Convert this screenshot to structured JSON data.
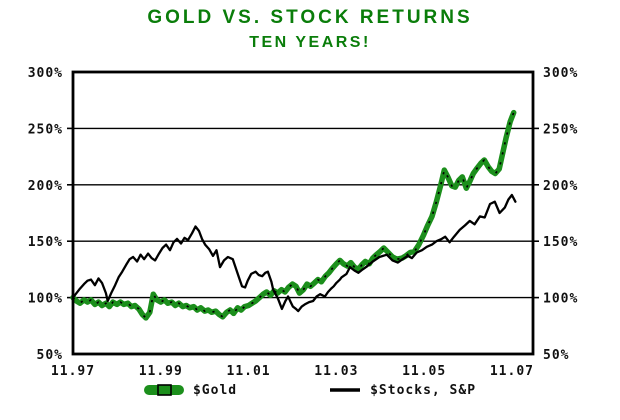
{
  "title": {
    "line1": "GOLD VS. STOCK RETURNS",
    "line2": "TEN YEARS!"
  },
  "legend": {
    "gold_label": "$Gold",
    "stocks_label": "$Stocks, S&P"
  },
  "colors": {
    "title_green": "#0a7d0a",
    "gold_line": "#1c8f1c",
    "stocks_line": "#000000",
    "axis": "#111111"
  },
  "chart_data": {
    "type": "line",
    "title": "GOLD VS. STOCK RETURNS",
    "subtitle": "TEN YEARS!",
    "xlabel": "",
    "ylabel": "",
    "grid": "horizontal",
    "legend_position": "bottom",
    "ylim": [
      50,
      300
    ],
    "xlim": [
      1997.92,
      2008.4
    ],
    "ytick_values": [
      300,
      250,
      200,
      150,
      100,
      50
    ],
    "ytick_labels": [
      "300%",
      "250%",
      "200%",
      "150%",
      "100%",
      "50%"
    ],
    "ytick_sides": "both",
    "xtick_values": [
      1997.92,
      1999.92,
      2001.92,
      2003.92,
      2005.92,
      2007.92
    ],
    "xtick_labels": [
      "11.97",
      "11.99",
      "11.01",
      "11.03",
      "11.05",
      "11.07"
    ],
    "series": [
      {
        "name": "$Gold",
        "color": "#1c8f1c",
        "style": "thick-green-with-black-dots",
        "points": [
          [
            1997.92,
            100
          ],
          [
            1998.0,
            97
          ],
          [
            1998.08,
            95
          ],
          [
            1998.17,
            98
          ],
          [
            1998.25,
            96
          ],
          [
            1998.33,
            98
          ],
          [
            1998.42,
            94
          ],
          [
            1998.5,
            96
          ],
          [
            1998.58,
            93
          ],
          [
            1998.67,
            95
          ],
          [
            1998.75,
            92
          ],
          [
            1998.83,
            96
          ],
          [
            1998.92,
            94
          ],
          [
            1999.0,
            96
          ],
          [
            1999.08,
            94
          ],
          [
            1999.17,
            95
          ],
          [
            1999.25,
            92
          ],
          [
            1999.33,
            93
          ],
          [
            1999.42,
            90
          ],
          [
            1999.5,
            85
          ],
          [
            1999.58,
            82
          ],
          [
            1999.67,
            87
          ],
          [
            1999.75,
            103
          ],
          [
            1999.83,
            98
          ],
          [
            1999.92,
            96
          ],
          [
            2000.0,
            98
          ],
          [
            2000.08,
            95
          ],
          [
            2000.17,
            96
          ],
          [
            2000.25,
            93
          ],
          [
            2000.33,
            95
          ],
          [
            2000.42,
            92
          ],
          [
            2000.5,
            93
          ],
          [
            2000.58,
            91
          ],
          [
            2000.67,
            92
          ],
          [
            2000.75,
            89
          ],
          [
            2000.83,
            91
          ],
          [
            2000.92,
            88
          ],
          [
            2001.0,
            89
          ],
          [
            2001.08,
            87
          ],
          [
            2001.17,
            88
          ],
          [
            2001.25,
            85
          ],
          [
            2001.33,
            83
          ],
          [
            2001.42,
            87
          ],
          [
            2001.5,
            89
          ],
          [
            2001.58,
            86
          ],
          [
            2001.67,
            91
          ],
          [
            2001.75,
            89
          ],
          [
            2001.83,
            92
          ],
          [
            2001.92,
            93
          ],
          [
            2002.0,
            95
          ],
          [
            2002.08,
            97
          ],
          [
            2002.17,
            100
          ],
          [
            2002.25,
            103
          ],
          [
            2002.33,
            105
          ],
          [
            2002.42,
            102
          ],
          [
            2002.5,
            106
          ],
          [
            2002.58,
            104
          ],
          [
            2002.67,
            107
          ],
          [
            2002.75,
            105
          ],
          [
            2002.83,
            109
          ],
          [
            2002.92,
            112
          ],
          [
            2003.0,
            110
          ],
          [
            2003.08,
            104
          ],
          [
            2003.17,
            107
          ],
          [
            2003.25,
            112
          ],
          [
            2003.33,
            110
          ],
          [
            2003.42,
            113
          ],
          [
            2003.5,
            116
          ],
          [
            2003.58,
            114
          ],
          [
            2003.67,
            119
          ],
          [
            2003.75,
            122
          ],
          [
            2003.83,
            126
          ],
          [
            2003.92,
            130
          ],
          [
            2004.0,
            133
          ],
          [
            2004.08,
            130
          ],
          [
            2004.17,
            128
          ],
          [
            2004.25,
            131
          ],
          [
            2004.33,
            127
          ],
          [
            2004.42,
            125
          ],
          [
            2004.5,
            129
          ],
          [
            2004.58,
            132
          ],
          [
            2004.67,
            130
          ],
          [
            2004.75,
            135
          ],
          [
            2004.83,
            138
          ],
          [
            2004.92,
            141
          ],
          [
            2005.0,
            144
          ],
          [
            2005.1,
            140
          ],
          [
            2005.2,
            136
          ],
          [
            2005.3,
            134
          ],
          [
            2005.42,
            135
          ],
          [
            2005.5,
            137
          ],
          [
            2005.6,
            140
          ],
          [
            2005.7,
            141
          ],
          [
            2005.8,
            147
          ],
          [
            2005.9,
            155
          ],
          [
            2006.0,
            164
          ],
          [
            2006.1,
            172
          ],
          [
            2006.2,
            185
          ],
          [
            2006.3,
            200
          ],
          [
            2006.38,
            213
          ],
          [
            2006.46,
            207
          ],
          [
            2006.55,
            199
          ],
          [
            2006.63,
            198
          ],
          [
            2006.71,
            204
          ],
          [
            2006.79,
            207
          ],
          [
            2006.88,
            197
          ],
          [
            2006.96,
            203
          ],
          [
            2007.04,
            210
          ],
          [
            2007.13,
            215
          ],
          [
            2007.21,
            219
          ],
          [
            2007.29,
            222
          ],
          [
            2007.38,
            216
          ],
          [
            2007.46,
            212
          ],
          [
            2007.54,
            210
          ],
          [
            2007.63,
            214
          ],
          [
            2007.71,
            228
          ],
          [
            2007.79,
            242
          ],
          [
            2007.88,
            256
          ],
          [
            2007.96,
            264
          ]
        ]
      },
      {
        "name": "$Stocks, S&P",
        "color": "#000000",
        "style": "thin-black-solid",
        "points": [
          [
            1997.92,
            100
          ],
          [
            1998.0,
            104
          ],
          [
            1998.08,
            108
          ],
          [
            1998.17,
            112
          ],
          [
            1998.25,
            115
          ],
          [
            1998.33,
            116
          ],
          [
            1998.42,
            111
          ],
          [
            1998.5,
            117
          ],
          [
            1998.58,
            113
          ],
          [
            1998.67,
            104
          ],
          [
            1998.71,
            97
          ],
          [
            1998.79,
            104
          ],
          [
            1998.88,
            111
          ],
          [
            1998.96,
            118
          ],
          [
            1999.04,
            123
          ],
          [
            1999.13,
            129
          ],
          [
            1999.21,
            134
          ],
          [
            1999.29,
            136
          ],
          [
            1999.38,
            132
          ],
          [
            1999.46,
            138
          ],
          [
            1999.54,
            134
          ],
          [
            1999.63,
            139
          ],
          [
            1999.71,
            135
          ],
          [
            1999.79,
            133
          ],
          [
            1999.88,
            139
          ],
          [
            1999.96,
            144
          ],
          [
            2000.04,
            147
          ],
          [
            2000.13,
            142
          ],
          [
            2000.21,
            149
          ],
          [
            2000.29,
            152
          ],
          [
            2000.38,
            148
          ],
          [
            2000.46,
            153
          ],
          [
            2000.54,
            151
          ],
          [
            2000.63,
            157
          ],
          [
            2000.71,
            163
          ],
          [
            2000.79,
            159
          ],
          [
            2000.86,
            152
          ],
          [
            2000.93,
            147
          ],
          [
            2001.02,
            143
          ],
          [
            2001.11,
            137
          ],
          [
            2001.19,
            142
          ],
          [
            2001.27,
            127
          ],
          [
            2001.36,
            133
          ],
          [
            2001.45,
            136
          ],
          [
            2001.56,
            134
          ],
          [
            2001.7,
            118
          ],
          [
            2001.77,
            110
          ],
          [
            2001.84,
            109
          ],
          [
            2001.9,
            115
          ],
          [
            2001.98,
            121
          ],
          [
            2002.08,
            123
          ],
          [
            2002.15,
            120
          ],
          [
            2002.23,
            119
          ],
          [
            2002.3,
            122
          ],
          [
            2002.36,
            123
          ],
          [
            2002.44,
            114
          ],
          [
            2002.48,
            107
          ],
          [
            2002.55,
            102
          ],
          [
            2002.59,
            99
          ],
          [
            2002.64,
            94
          ],
          [
            2002.68,
            90
          ],
          [
            2002.76,
            97
          ],
          [
            2002.82,
            101
          ],
          [
            2002.88,
            96
          ],
          [
            2002.93,
            92
          ],
          [
            2003.0,
            90
          ],
          [
            2003.05,
            88
          ],
          [
            2003.13,
            92
          ],
          [
            2003.2,
            94
          ],
          [
            2003.3,
            96
          ],
          [
            2003.39,
            97
          ],
          [
            2003.47,
            101
          ],
          [
            2003.55,
            103
          ],
          [
            2003.66,
            101
          ],
          [
            2003.73,
            105
          ],
          [
            2003.8,
            108
          ],
          [
            2003.86,
            110
          ],
          [
            2003.92,
            113
          ],
          [
            2004.0,
            116
          ],
          [
            2004.04,
            118
          ],
          [
            2004.15,
            121
          ],
          [
            2004.23,
            127
          ],
          [
            2004.33,
            124
          ],
          [
            2004.42,
            122
          ],
          [
            2004.52,
            125
          ],
          [
            2004.63,
            128
          ],
          [
            2004.75,
            132
          ],
          [
            2004.9,
            136
          ],
          [
            2005.07,
            138
          ],
          [
            2005.2,
            133
          ],
          [
            2005.32,
            131
          ],
          [
            2005.43,
            134
          ],
          [
            2005.55,
            137
          ],
          [
            2005.64,
            135
          ],
          [
            2005.75,
            140
          ],
          [
            2005.87,
            142
          ],
          [
            2005.98,
            145
          ],
          [
            2006.1,
            147
          ],
          [
            2006.2,
            150
          ],
          [
            2006.32,
            152
          ],
          [
            2006.4,
            154
          ],
          [
            2006.5,
            149
          ],
          [
            2006.6,
            154
          ],
          [
            2006.73,
            160
          ],
          [
            2006.85,
            164
          ],
          [
            2006.96,
            168
          ],
          [
            2007.07,
            165
          ],
          [
            2007.19,
            172
          ],
          [
            2007.3,
            171
          ],
          [
            2007.42,
            183
          ],
          [
            2007.53,
            185
          ],
          [
            2007.64,
            175
          ],
          [
            2007.76,
            180
          ],
          [
            2007.84,
            187
          ],
          [
            2007.92,
            191
          ],
          [
            2008.0,
            185
          ]
        ]
      }
    ]
  }
}
